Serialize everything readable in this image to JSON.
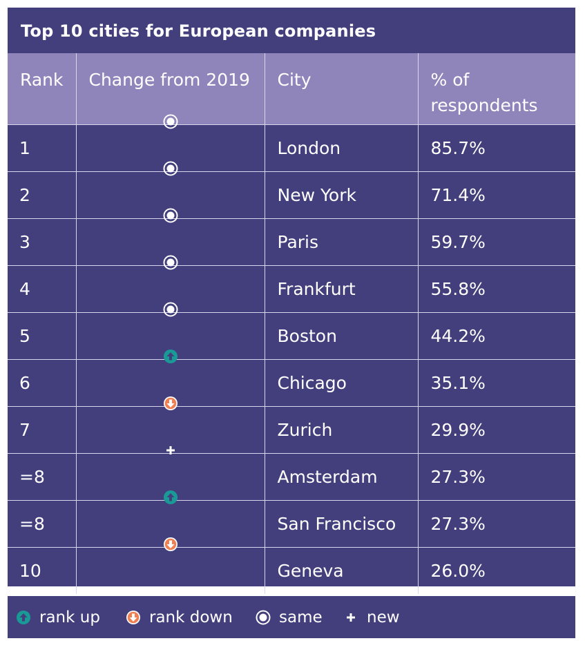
{
  "chart_data": {
    "type": "table",
    "title": "Top 10 cities for European companies",
    "columns": [
      "Rank",
      "Change from 2019",
      "City",
      "% of respondents"
    ],
    "rows": [
      {
        "rank": "1",
        "change": "same",
        "city": "London",
        "pct": "85.7%"
      },
      {
        "rank": "2",
        "change": "same",
        "city": "New York",
        "pct": "71.4%"
      },
      {
        "rank": "3",
        "change": "same",
        "city": "Paris",
        "pct": "59.7%"
      },
      {
        "rank": "4",
        "change": "same",
        "city": "Frankfurt",
        "pct": "55.8%"
      },
      {
        "rank": "5",
        "change": "same",
        "city": "Boston",
        "pct": "44.2%"
      },
      {
        "rank": "6",
        "change": "up",
        "city": "Chicago",
        "pct": "35.1%"
      },
      {
        "rank": "7",
        "change": "down",
        "city": "Zurich",
        "pct": "29.9%"
      },
      {
        "rank": "=8",
        "change": "new",
        "city": "Amsterdam",
        "pct": "27.3%"
      },
      {
        "rank": "=8",
        "change": "up",
        "city": "San Francisco",
        "pct": "27.3%"
      },
      {
        "rank": "10",
        "change": "down",
        "city": "Geneva",
        "pct": "26.0%"
      }
    ],
    "legend": [
      {
        "key": "up",
        "label": "rank up"
      },
      {
        "key": "down",
        "label": "rank down"
      },
      {
        "key": "same",
        "label": "same"
      },
      {
        "key": "new",
        "label": "new"
      }
    ]
  },
  "colors": {
    "background": "#433f7d",
    "header": "#8f85bb",
    "up": "#1a9a96",
    "down": "#f07f52",
    "text": "#ffffff"
  },
  "icons": {
    "up": "arrow-up-circle-icon",
    "down": "arrow-down-circle-icon",
    "same": "dot-in-circle-icon",
    "new": "plus-icon"
  }
}
